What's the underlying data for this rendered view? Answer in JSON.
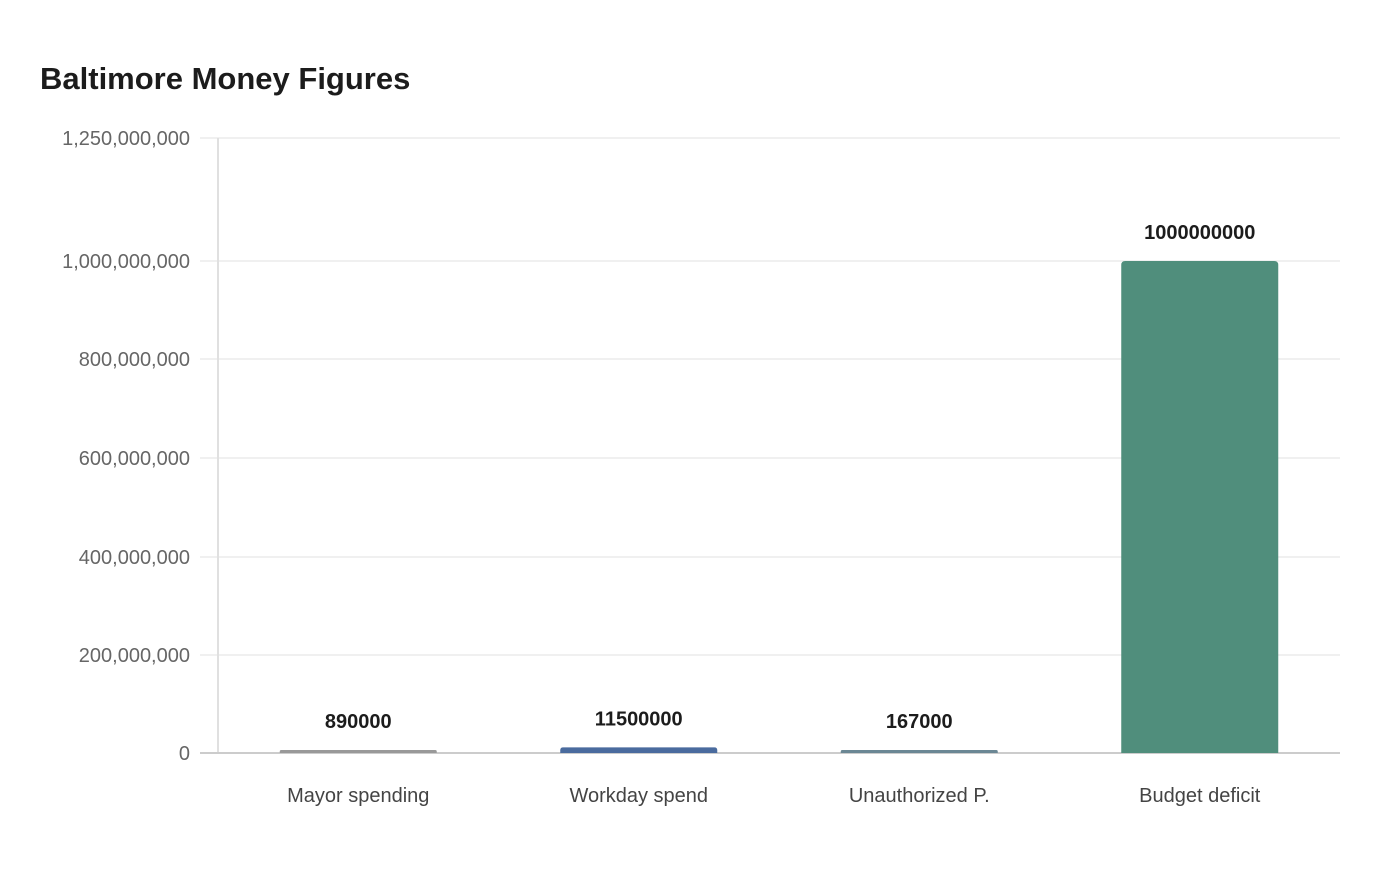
{
  "chart_data": {
    "type": "bar",
    "title": "Baltimore Money Figures",
    "xlabel": "",
    "ylabel": "",
    "categories": [
      "Mayor spending",
      "Workday spend",
      "Unauthorized P.",
      "Budget deficit"
    ],
    "values": [
      890000,
      11500000,
      167000,
      1000000000
    ],
    "data_labels": [
      "890000",
      "11500000",
      "167000",
      "1000000000"
    ],
    "colors": [
      "#999999",
      "#4a6b9e",
      "#6b8794",
      "#508e7c"
    ],
    "ylim": [
      0,
      1250000000
    ],
    "yticks": [
      0,
      200000000,
      400000000,
      600000000,
      800000000,
      1000000000,
      1250000000
    ],
    "ytick_labels": [
      "0",
      "200,000,000",
      "400,000,000",
      "600,000,000",
      "800,000,000",
      "1,000,000,000",
      "1,250,000,000"
    ],
    "grid": true,
    "legend": "none"
  }
}
